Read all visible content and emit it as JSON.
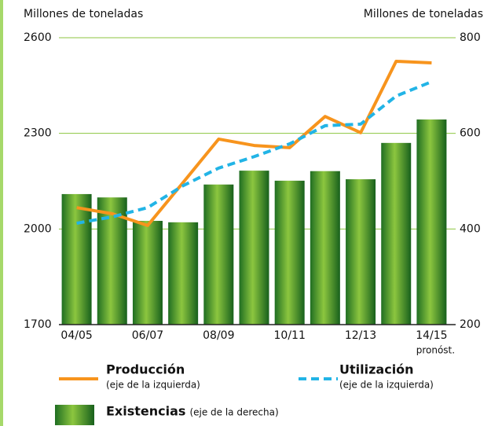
{
  "chart_data": {
    "type": "bar-line",
    "y_label": "Millones de toneladas",
    "y2_label": "Millones de toneladas",
    "categories": [
      "04/05",
      null,
      "06/07",
      null,
      "08/09",
      null,
      "10/11",
      null,
      "12/13",
      null,
      "14/15"
    ],
    "annotation": "pronóst.",
    "ylim": [
      1700,
      2600
    ],
    "yticks": [
      1700,
      2000,
      2300,
      2600
    ],
    "y2lim": [
      200,
      800
    ],
    "y2ticks": [
      200,
      400,
      600,
      800
    ],
    "grid": true,
    "series": [
      {
        "name": "Producción",
        "note": "(eje de la izquierda)",
        "type": "line",
        "color": "#f7941d",
        "dashed": false,
        "values": [
          2067,
          2048,
          2011,
          2146,
          2282,
          2262,
          2255,
          2353,
          2302,
          2526,
          2521
        ]
      },
      {
        "name": "Utilización",
        "note": "(eje de la izquierda)",
        "type": "line",
        "color": "#22b4e6",
        "dashed": true,
        "values": [
          2018,
          2038,
          2067,
          2136,
          2191,
          2227,
          2267,
          2324,
          2329,
          2417,
          2462
        ]
      },
      {
        "name": "Existencias",
        "note": "(eje de la derecha)",
        "type": "bar",
        "axis": "y2",
        "color": "#3d9b2f",
        "values": [
          473,
          466,
          417,
          414,
          493,
          522,
          501,
          521,
          504,
          580,
          629
        ]
      }
    ]
  }
}
